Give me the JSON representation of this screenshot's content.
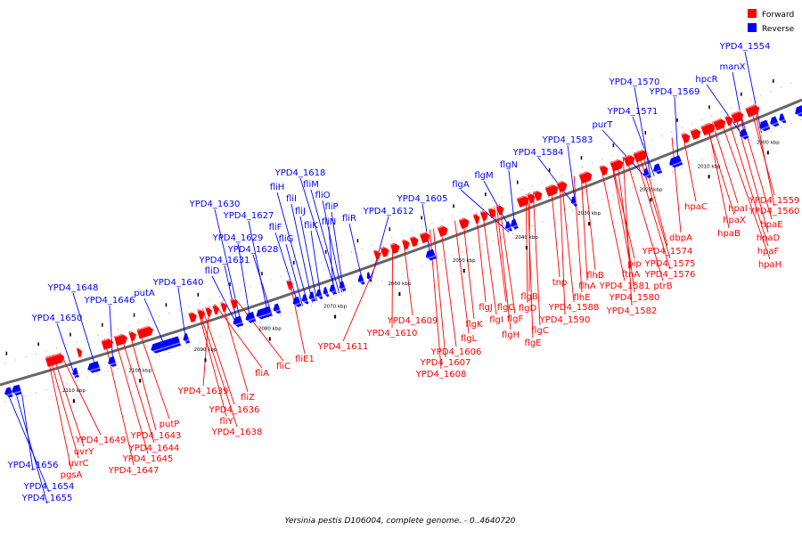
{
  "colors": {
    "forward": "#ff0000",
    "reverse": "#0000ff",
    "backbone": "#666666"
  },
  "legend": [
    {
      "label": "Forward",
      "color": "#ff0000"
    },
    {
      "label": "Reverse",
      "color": "#0000ff"
    }
  ],
  "caption": "Yersinia pestis D106004, complete genome. - 0..4640720",
  "kbp_ticks": [
    "2000 kbp",
    "2010 kbp",
    "2020 kbp",
    "2030 kbp",
    "2040 kbp",
    "2050 kbp",
    "2060 kbp",
    "2070 kbp",
    "2080 kbp",
    "2090 kbp",
    "2100 kbp",
    "2110 kbp"
  ],
  "reverse_labels": [
    "YPD4_1554",
    "manX",
    "hpcR",
    "YPD4_1570",
    "YPD4_1569",
    "YPD4_1571",
    "purT",
    "YPD4_1583",
    "YPD4_1584",
    "flgN",
    "flgM",
    "flgA",
    "YPD4_1605",
    "YPD4_1612",
    "YPD4_1618",
    "fliM",
    "fliO",
    "fliP",
    "fliN",
    "fliR",
    "fliH",
    "fliI",
    "fliJ",
    "fliK",
    "fliF",
    "fliG",
    "YPD4_1630",
    "YPD4_1627",
    "YPD4_1629",
    "YPD4_1628",
    "YPD4_1631",
    "fliD",
    "YPD4_1640",
    "putA",
    "YPD4_1648",
    "YPD4_1646",
    "YPD4_1650",
    "YPD4_1656",
    "YPD4_1654",
    "YPD4_1655"
  ],
  "forward_labels": [
    "hpaC",
    "hpaI",
    "hpaX",
    "hpaB",
    "YPD4_1559",
    "YPD4_1560",
    "hpaE",
    "hpaD",
    "hpaF",
    "hpaH",
    "dbpA",
    "YPD4_1574",
    "YPD4_1575",
    "YPD4_1576",
    "pip",
    "ptrB",
    "ftnA",
    "YPD4_1581",
    "YPD4_1580",
    "YPD4_1582",
    "flhB",
    "flhA",
    "flhE",
    "tnp",
    "YPD4_1588",
    "YPD4_1590",
    "flgB",
    "flgD",
    "flgC",
    "flgE",
    "flgF",
    "flgG",
    "flgH",
    "flgI",
    "flgJ",
    "flgK",
    "flgL",
    "YPD4_1606",
    "YPD4_1607",
    "YPD4_1608",
    "YPD4_1609",
    "YPD4_1610",
    "YPD4_1611",
    "fliE1",
    "fliC",
    "fliA",
    "fliZ",
    "YPD4_1639",
    "YPD4_1636",
    "fliY",
    "YPD4_1638",
    "putP",
    "YPD4_1643",
    "YPD4_1644",
    "YPD4_1645",
    "YPD4_1647",
    "YPD4_1649",
    "uvrY",
    "uvrC",
    "pgsA"
  ]
}
